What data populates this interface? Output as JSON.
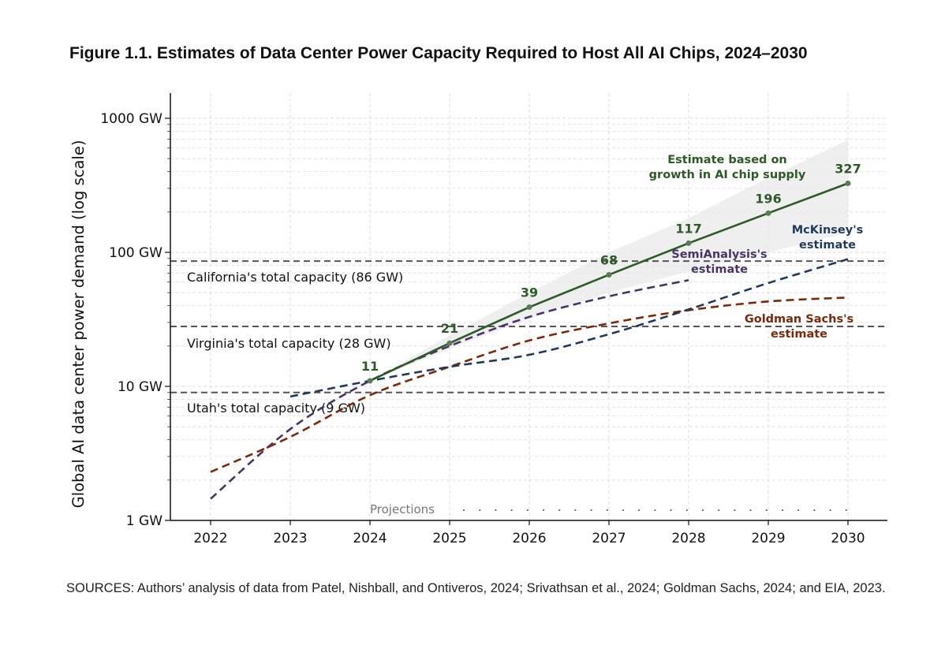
{
  "chart_data": {
    "type": "line",
    "title": "Figure 1.1. Estimates of Data Center Power Capacity Required to Host All AI Chips, 2024–2030",
    "ylabel": "Global AI data center power demand (log scale)",
    "xlabel": "",
    "yscale": "log",
    "ylim": [
      1,
      1500
    ],
    "xlim": [
      2021.5,
      2030.5
    ],
    "x_ticks": [
      2022,
      2023,
      2024,
      2025,
      2026,
      2027,
      2028,
      2029,
      2030
    ],
    "y_ticks": [
      1,
      10,
      100,
      1000
    ],
    "y_tick_labels": [
      "1 GW",
      "10 GW",
      "100 GW",
      "1000 GW"
    ],
    "grid": true,
    "projections_label": "Projections",
    "projections_start": 2025,
    "series": [
      {
        "name": "Estimate based on growth in AI chip supply",
        "label_lines": [
          "Estimate based on",
          "growth in AI chip supply"
        ],
        "style": "solid",
        "color": "#2d5a27",
        "x": [
          2024,
          2025,
          2026,
          2027,
          2028,
          2029,
          2030
        ],
        "values": [
          11,
          21,
          39,
          68,
          117,
          196,
          327
        ],
        "data_labels": [
          "11",
          "21",
          "39",
          "68",
          "117",
          "196",
          "327"
        ],
        "band_lower": [
          11,
          19,
          32,
          50,
          72,
          100,
          140
        ],
        "band_upper": [
          11,
          24,
          50,
          100,
          180,
          360,
          690
        ]
      },
      {
        "name": "SemiAnalysis's estimate",
        "label_lines": [
          "SemiAnalysis's",
          "estimate"
        ],
        "style": "dashed",
        "color": "#4a3466",
        "x": [
          2022,
          2023,
          2024,
          2025,
          2026,
          2027,
          2028
        ],
        "values": [
          1.45,
          4.8,
          11,
          20,
          33,
          47,
          62
        ]
      },
      {
        "name": "Goldman Sachs's estimate",
        "label_lines": [
          "Goldman Sachs's",
          "estimate"
        ],
        "style": "dashed",
        "color": "#7a2a0a",
        "x": [
          2022,
          2023,
          2024,
          2025,
          2026,
          2027,
          2028,
          2029,
          2030
        ],
        "values": [
          2.3,
          4.2,
          8.6,
          14,
          22,
          29.5,
          37,
          43,
          46
        ]
      },
      {
        "name": "McKinsey's estimate",
        "label_lines": [
          "McKinsey's",
          "estimate"
        ],
        "style": "dashed",
        "color": "#1f3a5c",
        "x": [
          2023,
          2024,
          2025,
          2026,
          2027,
          2028,
          2029,
          2030
        ],
        "values": [
          8.4,
          11,
          14,
          17.2,
          24.5,
          37.5,
          59,
          89
        ]
      }
    ],
    "reference_lines": [
      {
        "label": "California's total capacity (86 GW)",
        "value": 86
      },
      {
        "label": "Virginia's total capacity (28 GW)",
        "value": 28
      },
      {
        "label": "Utah's total capacity (9 GW)",
        "value": 9
      }
    ]
  },
  "source_note": "SOURCES: Authors’ analysis of data from Patel, Nishball, and Ontiveros, 2024; Srivathsan et al., 2024; Goldman Sachs, 2024; and EIA, 2023."
}
